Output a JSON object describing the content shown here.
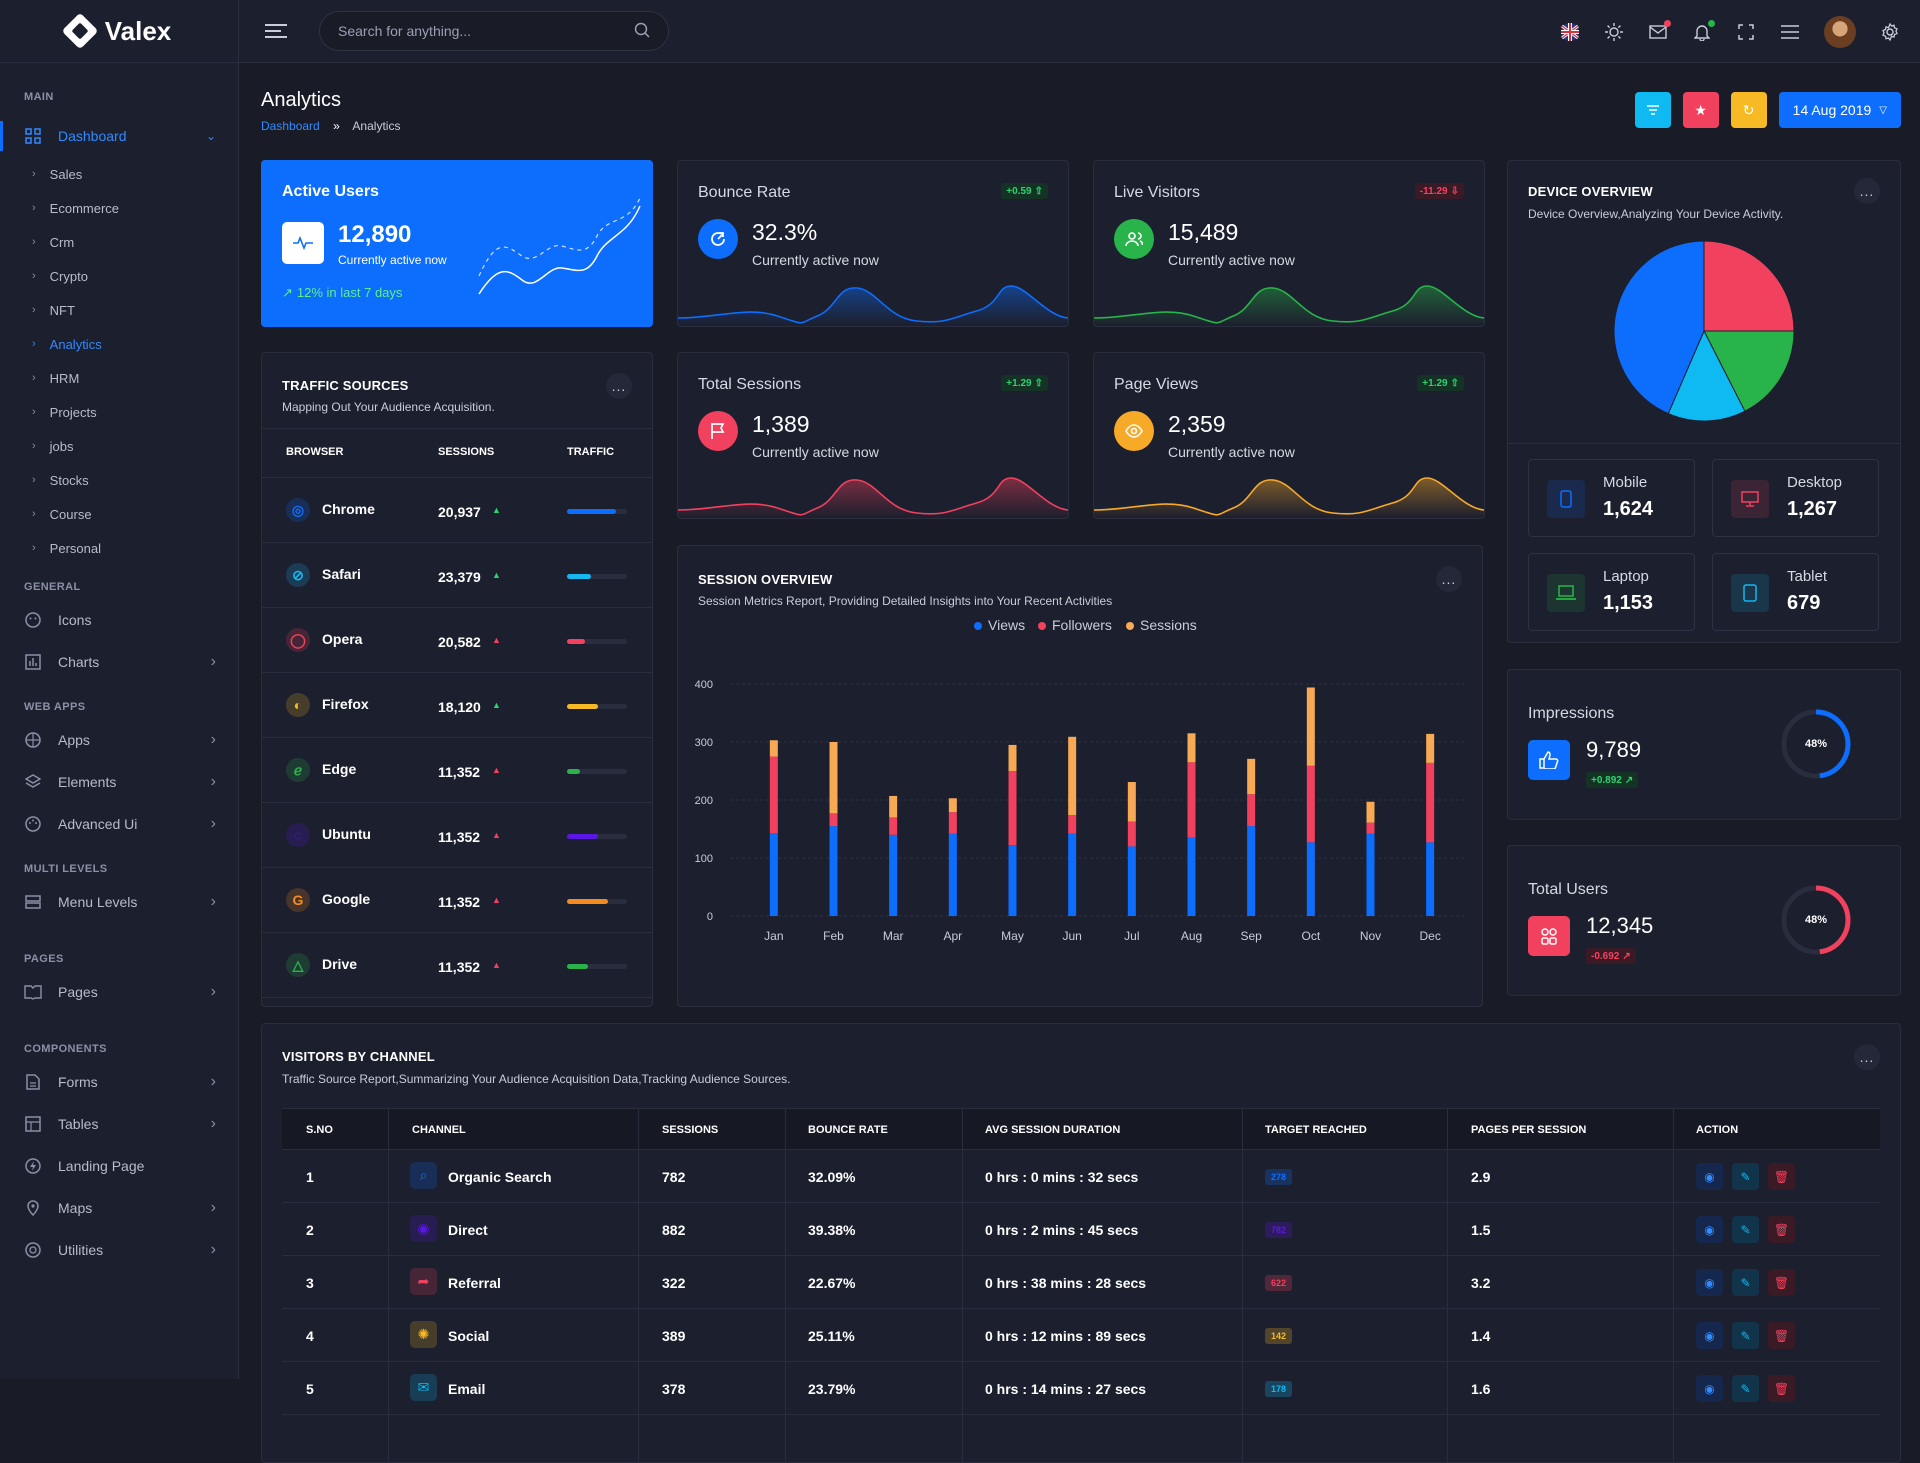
{
  "app": {
    "name": "Valex"
  },
  "search": {
    "placeholder": "Search for anything..."
  },
  "sidebar": {
    "main_label": "MAIN",
    "dashboard": "Dashboard",
    "sub": [
      "Sales",
      "Ecommerce",
      "Crm",
      "Crypto",
      "NFT",
      "Analytics",
      "HRM",
      "Projects",
      "jobs",
      "Stocks",
      "Course",
      "Personal"
    ],
    "general_label": "GENERAL",
    "icons": "Icons",
    "charts": "Charts",
    "webapps_label": "WEB APPS",
    "apps": "Apps",
    "elements": "Elements",
    "advanced": "Advanced Ui",
    "multi_label": "MULTI LEVELS",
    "menu_levels": "Menu Levels",
    "pages_label": "PAGES",
    "pages": "Pages",
    "components_label": "COMPONENTS",
    "forms": "Forms",
    "tables": "Tables",
    "landing": "Landing Page",
    "maps": "Maps",
    "utilities": "Utilities"
  },
  "page": {
    "title": "Analytics",
    "crumb_home": "Dashboard",
    "crumb_sep": "»",
    "crumb_current": "Analytics",
    "date": "14 Aug 2019"
  },
  "active_users": {
    "title": "Active Users",
    "value": "12,890",
    "sub": "Currently active now",
    "trend": "12% in last 7 days"
  },
  "stats": [
    {
      "label": "Bounce Rate",
      "value": "32.3%",
      "sub": "Currently active now",
      "badge": "+0.59",
      "color": "#0d6efd"
    },
    {
      "label": "Live Visitors",
      "value": "15,489",
      "sub": "Currently active now",
      "badge": "-11.29",
      "color": "#28b44a"
    },
    {
      "label": "Total Sessions",
      "value": "1,389",
      "sub": "Currently active now",
      "badge": "+1.29",
      "color": "#f1415f"
    },
    {
      "label": "Page Views",
      "value": "2,359",
      "sub": "Currently active now",
      "badge": "+1.29",
      "color": "#f7a928"
    }
  ],
  "traffic": {
    "title": "TRAFFIC SOURCES",
    "sub": "Mapping Out Your Audience Acquisition.",
    "more": "...",
    "headers": [
      "BROWSER",
      "SESSIONS",
      "TRAFFIC"
    ],
    "rows": [
      {
        "name": "Chrome",
        "sessions": "20,937",
        "trend": "up",
        "level": 0.82,
        "color": "#0d6efd"
      },
      {
        "name": "Safari",
        "sessions": "23,379",
        "trend": "up",
        "level": 0.4,
        "color": "#17b6f0"
      },
      {
        "name": "Opera",
        "sessions": "20,582",
        "trend": "down",
        "level": 0.3,
        "color": "#f1415f"
      },
      {
        "name": "Firefox",
        "sessions": "18,120",
        "trend": "up",
        "level": 0.52,
        "color": "#f7b924"
      },
      {
        "name": "Edge",
        "sessions": "11,352",
        "trend": "down",
        "level": 0.22,
        "color": "#28b44a"
      },
      {
        "name": "Ubuntu",
        "sessions": "11,352",
        "trend": "down",
        "level": 0.52,
        "color": "#5a17e3"
      },
      {
        "name": "Google",
        "sessions": "11,352",
        "trend": "down",
        "level": 0.68,
        "color": "#f58a1f"
      },
      {
        "name": "Drive",
        "sessions": "11,352",
        "trend": "down",
        "level": 0.35,
        "color": "#28b44a"
      }
    ]
  },
  "session": {
    "title": "SESSION OVERVIEW",
    "sub": "Session Metrics Report, Providing Detailed Insights into Your Recent Activities",
    "more": "..."
  },
  "chart_data": {
    "type": "bar",
    "stacked": true,
    "categories": [
      "Jan",
      "Feb",
      "Mar",
      "Apr",
      "May",
      "Jun",
      "Jul",
      "Aug",
      "Sep",
      "Oct",
      "Nov",
      "Dec"
    ],
    "series": [
      {
        "name": "Views",
        "color": "#0d6efd",
        "values": [
          143,
          155,
          140,
          142,
          122,
          142,
          120,
          135,
          155,
          127,
          142,
          127
        ]
      },
      {
        "name": "Followers",
        "color": "#f1415f",
        "values": [
          132,
          22,
          30,
          37,
          128,
          32,
          43,
          130,
          55,
          132,
          19,
          137
        ]
      },
      {
        "name": "Sessions",
        "color": "#f7a954",
        "values": [
          28,
          123,
          37,
          24,
          45,
          135,
          68,
          50,
          61,
          135,
          36,
          50
        ]
      }
    ],
    "ylim": [
      0,
      400
    ],
    "yticks": [
      0,
      100,
      200,
      300,
      400
    ],
    "legend": "top"
  },
  "device": {
    "title": "DEVICE OVERVIEW",
    "sub": "Device Overview,Analyzing Your Device Activity.",
    "more": "...",
    "pie": [
      {
        "color": "#f1415f",
        "value": 0.25
      },
      {
        "color": "#28b44a",
        "value": 0.175
      },
      {
        "color": "#0fb9f2",
        "value": 0.14
      },
      {
        "color": "#0d6efd",
        "value": 0.435
      }
    ],
    "items": [
      {
        "label": "Mobile",
        "value": "1,624",
        "color": "#0d6efd"
      },
      {
        "label": "Desktop",
        "value": "1,267",
        "color": "#f1415f"
      },
      {
        "label": "Laptop",
        "value": "1,153",
        "color": "#28b44a"
      },
      {
        "label": "Tablet",
        "value": "679",
        "color": "#0fb9f2"
      }
    ]
  },
  "impressions": {
    "label": "Impressions",
    "value": "9,789",
    "badge": "+0.892",
    "pct": "48%",
    "level": 0.48
  },
  "total_users": {
    "label": "Total Users",
    "value": "12,345",
    "badge": "-0.692",
    "pct": "48%",
    "level": 0.48
  },
  "visitors": {
    "title": "VISITORS BY CHANNEL",
    "sub": "Traffic Source Report,Summarizing Your Audience Acquisition Data,Tracking Audience Sources.",
    "more": "...",
    "headers": [
      "S.NO",
      "CHANNEL",
      "SESSIONS",
      "BOUNCE RATE",
      "AVG SESSION DURATION",
      "TARGET REACHED",
      "PAGES PER SESSION",
      "ACTION"
    ],
    "rows": [
      {
        "no": "1",
        "channel": "Organic Search",
        "sessions": "782",
        "bounce": "32.09%",
        "duration": "0 hrs : 0 mins : 32 secs",
        "target": "278",
        "pages": "2.9",
        "color": "#0d6efd"
      },
      {
        "no": "2",
        "channel": "Direct",
        "sessions": "882",
        "bounce": "39.38%",
        "duration": "0 hrs : 2 mins : 45 secs",
        "target": "782",
        "pages": "1.5",
        "color": "#5a17e3"
      },
      {
        "no": "3",
        "channel": "Referral",
        "sessions": "322",
        "bounce": "22.67%",
        "duration": "0 hrs : 38 mins : 28 secs",
        "target": "622",
        "pages": "3.2",
        "color": "#f1415f"
      },
      {
        "no": "4",
        "channel": "Social",
        "sessions": "389",
        "bounce": "25.11%",
        "duration": "0 hrs : 12 mins : 89 secs",
        "target": "142",
        "pages": "1.4",
        "color": "#f7b924"
      },
      {
        "no": "5",
        "channel": "Email",
        "sessions": "378",
        "bounce": "23.79%",
        "duration": "0 hrs : 14 mins : 27 secs",
        "target": "178",
        "pages": "1.6",
        "color": "#0fb9f2"
      }
    ]
  }
}
